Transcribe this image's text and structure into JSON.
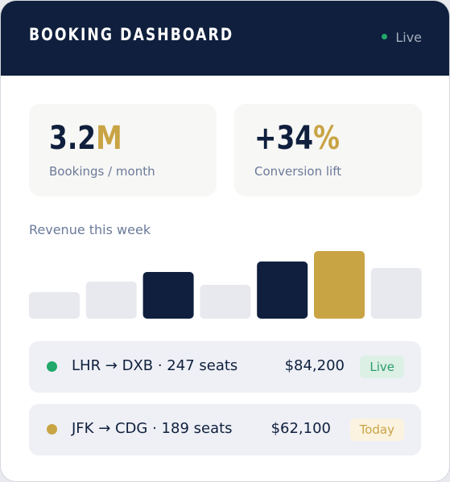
{
  "header": {
    "title": "BOOKING DASHBOARD",
    "status": "Live"
  },
  "stats": [
    {
      "value": "3.2",
      "unit": "M",
      "label": "Bookings / month"
    },
    {
      "value": "+34",
      "unit": "%",
      "label": "Conversion lift"
    }
  ],
  "chart_data": {
    "type": "bar",
    "title": "Revenue this week",
    "values": [
      33,
      46,
      58,
      42,
      71,
      84,
      63
    ],
    "colors": [
      "#e8e9ef",
      "#e8e9ef",
      "#0f1f3d",
      "#e8e9ef",
      "#0f1f3d",
      "#c9a445",
      "#e8e9ef"
    ]
  },
  "routes": [
    {
      "route": "LHR → DXB · 247 seats",
      "price": "$84,200",
      "badge": "Live",
      "color": "#22a86b"
    },
    {
      "route": "JFK → CDG · 189 seats",
      "price": "$62,100",
      "badge": "Today",
      "color": "#c9a445"
    }
  ]
}
